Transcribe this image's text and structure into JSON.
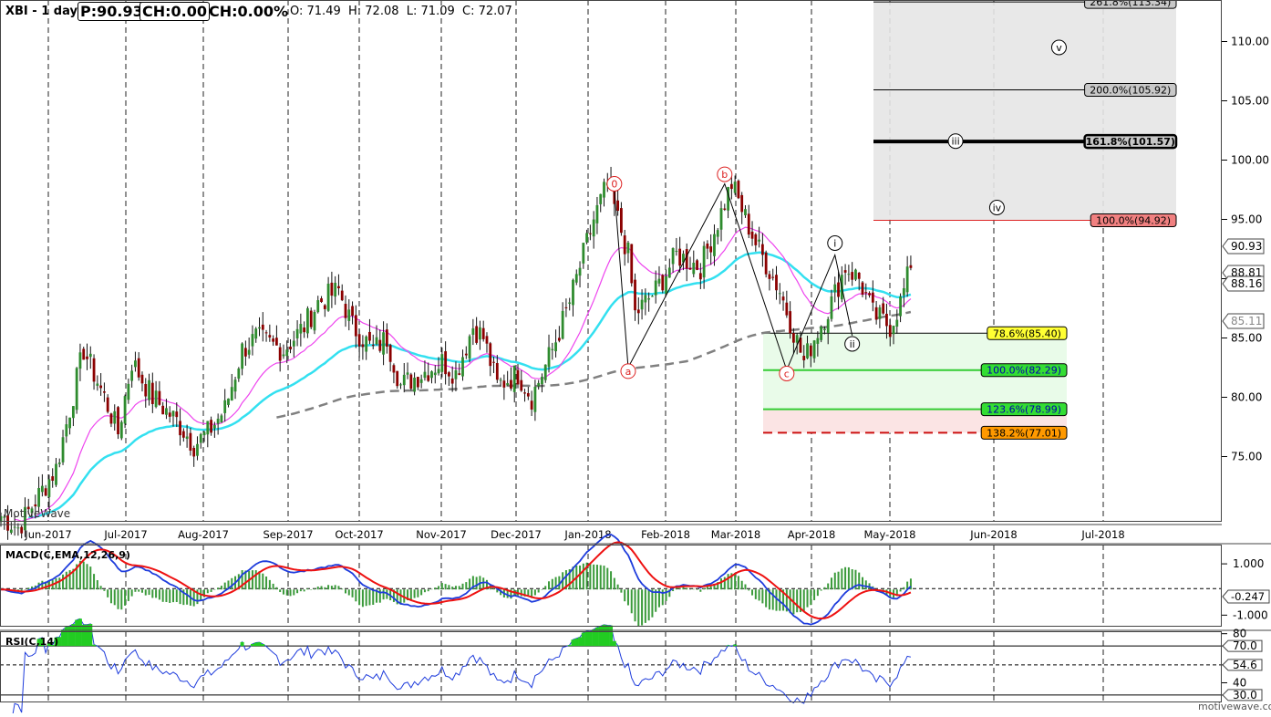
{
  "header": {
    "symbol": "XBI - 1 day",
    "price_box": "P:90.93",
    "change_box": "CH:0.00",
    "change_pct": "CH:0.00%",
    "ohlc": "O: 71.49  H: 72.08  L: 71.09  C: 72.07"
  },
  "watermark_left": "MotiveWave",
  "watermark_right": "motivewave.com",
  "colors": {
    "up": "#2e8b2e",
    "down": "#8b0000",
    "ema_fast": "#ee44ee",
    "ema_mid": "#33e0f0",
    "sma_slow": "#808080",
    "macd": "#1e3cdc",
    "signal": "#ee1111",
    "rsi": "#1e3cdc",
    "hist": "#3a9a3a",
    "wave_label": "#dd2222"
  },
  "chart_data": [
    {
      "type": "candlestick",
      "title": "XBI - 1 day",
      "x_labels": [
        "Jun-2017",
        "Jul-2017",
        "Aug-2017",
        "Sep-2017",
        "Oct-2017",
        "Nov-2017",
        "Dec-2017",
        "Jan-2018",
        "Feb-2018",
        "Mar-2018",
        "Apr-2018",
        "May-2018",
        "Jun-2018",
        "Jul-2018"
      ],
      "ylim": [
        69.5,
        113.5
      ],
      "y_ticks": [
        75,
        80,
        85,
        90,
        95,
        100,
        105,
        110
      ],
      "y_tick_labels": [
        "75.00",
        "80.00",
        "85.00",
        "90.00",
        "95.00",
        "100.00",
        "105.00",
        "110.00"
      ],
      "price_axis_labels": [
        "90.93",
        "88.81",
        "88.16",
        "85.11"
      ],
      "anchors": [
        [
          0,
          70
        ],
        [
          5,
          69
        ],
        [
          16,
          74
        ],
        [
          24,
          84
        ],
        [
          30,
          80
        ],
        [
          34,
          77
        ],
        [
          38,
          83
        ],
        [
          44,
          80
        ],
        [
          51,
          78
        ],
        [
          56,
          76
        ],
        [
          60,
          77
        ],
        [
          65,
          79
        ],
        [
          70,
          84
        ],
        [
          74,
          85
        ],
        [
          82,
          84
        ],
        [
          88,
          86
        ],
        [
          92,
          88
        ],
        [
          98,
          89
        ],
        [
          102,
          86
        ],
        [
          108,
          84
        ],
        [
          112,
          85
        ],
        [
          116,
          81
        ],
        [
          122,
          82
        ],
        [
          128,
          83
        ],
        [
          132,
          82
        ],
        [
          137,
          86
        ],
        [
          140,
          85
        ],
        [
          144,
          81
        ],
        [
          150,
          82
        ],
        [
          154,
          80
        ],
        [
          160,
          84
        ],
        [
          165,
          88
        ],
        [
          172,
          95
        ],
        [
          176,
          98
        ],
        [
          182,
          92
        ],
        [
          184,
          87
        ],
        [
          190,
          89
        ],
        [
          196,
          92
        ],
        [
          203,
          91
        ],
        [
          207,
          94
        ],
        [
          212,
          98
        ],
        [
          219,
          93
        ],
        [
          226,
          89
        ],
        [
          233,
          83
        ],
        [
          236,
          85
        ],
        [
          241,
          88
        ],
        [
          245,
          91
        ],
        [
          249,
          90
        ],
        [
          253,
          87
        ],
        [
          258,
          86
        ],
        [
          261,
          88
        ],
        [
          264,
          91
        ]
      ],
      "series": [
        {
          "name": "EMA fast",
          "period": 21
        },
        {
          "name": "EMA mid",
          "period": 50
        },
        {
          "name": "SMA slow",
          "period": 200
        }
      ],
      "wave_labels": [
        {
          "text": "0",
          "x": 178,
          "y": 98.0,
          "style": "red"
        },
        {
          "text": "a",
          "x": 182,
          "y": 82.2,
          "style": "red"
        },
        {
          "text": "b",
          "x": 210,
          "y": 98.8,
          "style": "red"
        },
        {
          "text": "c",
          "x": 228,
          "y": 82.0,
          "style": "red"
        },
        {
          "text": "i",
          "x": 242,
          "y": 93.0,
          "style": "black"
        },
        {
          "text": "ii",
          "x": 247,
          "y": 84.5,
          "style": "black"
        },
        {
          "text": "iii",
          "x": 277,
          "y": 101.6,
          "style": "black"
        },
        {
          "text": "iv",
          "x": 289,
          "y": 96.0,
          "style": "black"
        },
        {
          "text": "v",
          "x": 307,
          "y": 109.5,
          "style": "black"
        }
      ],
      "wave_lines": [
        [
          178,
          97.5
        ],
        [
          182,
          82.5
        ],
        [
          210,
          98.0
        ],
        [
          228,
          82.3
        ]
      ],
      "fib_upper": [
        {
          "label": "261.8%(113.34)",
          "value": 113.34,
          "style": "thin"
        },
        {
          "label": "200.0%(105.92)",
          "value": 105.92,
          "style": "thin"
        },
        {
          "label": "161.8%(101.57)",
          "value": 101.57,
          "style": "bold"
        },
        {
          "label": "100.0%(94.92)",
          "value": 94.92,
          "style": "red"
        }
      ],
      "fib_lower": [
        {
          "label": "78.6%(85.40)",
          "value": 85.4,
          "style": "yellow"
        },
        {
          "label": "100.0%(82.29)",
          "value": 82.29,
          "style": "green"
        },
        {
          "label": "123.6%(78.99)",
          "value": 78.99,
          "style": "green"
        },
        {
          "label": "138.2%(77.01)",
          "value": 77.01,
          "style": "dashed-red"
        }
      ]
    },
    {
      "type": "macd",
      "title": "MACD(C,EMA,12,26,9)",
      "ylim": [
        -1.45,
        1.75
      ],
      "y_ticks": [
        1.0,
        -1.0
      ],
      "y_tick_labels": [
        "1.000",
        "-1.000"
      ],
      "current_label": "-0.247"
    },
    {
      "type": "rsi",
      "title": "RSI(C,14)",
      "ylim": [
        24,
        82
      ],
      "y_ticks": [
        80,
        70,
        54.6,
        40,
        30
      ],
      "y_tick_labels": [
        "80",
        "70.0",
        "54.6",
        "40",
        "30.0"
      ],
      "levels": [
        70,
        30
      ]
    }
  ]
}
